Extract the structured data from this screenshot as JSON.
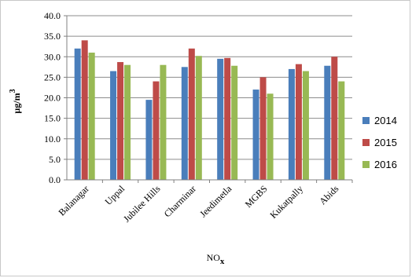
{
  "chart_data": {
    "type": "bar",
    "categories": [
      "Balanagar",
      "Uppal",
      "Jubilee Hills",
      "Charminar",
      "Jeedimetla",
      "MGBS",
      "Kukatpally",
      "Abids"
    ],
    "series": [
      {
        "name": "2014",
        "color": "#4a7ebb",
        "values": [
          32.0,
          26.5,
          19.5,
          27.5,
          29.5,
          22.0,
          27.0,
          27.8
        ]
      },
      {
        "name": "2015",
        "color": "#be4b48",
        "values": [
          34.0,
          28.7,
          24.0,
          32.0,
          29.7,
          25.0,
          28.2,
          30.0
        ]
      },
      {
        "name": "2016",
        "color": "#98b954",
        "values": [
          31.0,
          28.0,
          28.0,
          30.2,
          27.8,
          21.0,
          26.5,
          24.0
        ]
      }
    ],
    "ylabel_main": "µg/m",
    "ylabel_sup": "3",
    "xlabel_main": "NO",
    "xlabel_sub": "x",
    "ylim": [
      0,
      40
    ],
    "yticks": [
      "0.0",
      "5.0",
      "10.0",
      "15.0",
      "20.0",
      "25.0",
      "30.0",
      "35.0",
      "40.0"
    ],
    "grid": true,
    "legend_position": "right"
  }
}
